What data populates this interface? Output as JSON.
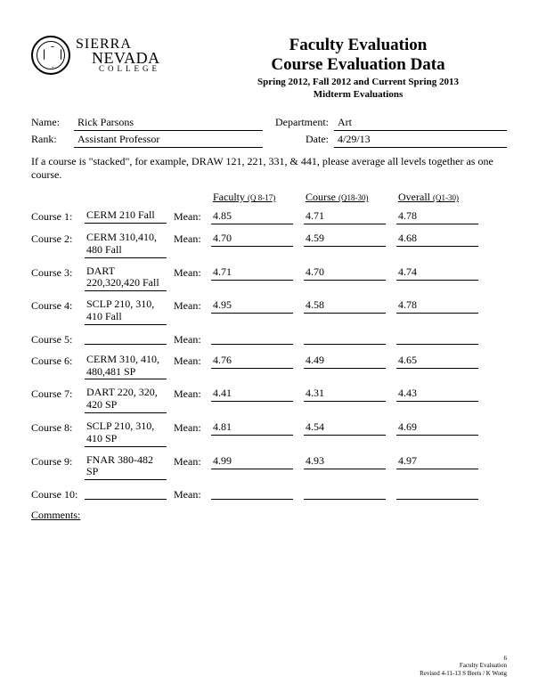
{
  "logo": {
    "line1": "SIERRA",
    "line2": "NEVADA",
    "line3": "COLLEGE"
  },
  "title": {
    "line1": "Faculty Evaluation",
    "line2": "Course Evaluation Data",
    "sub1": "Spring 2012, Fall 2012 and Current Spring 2013",
    "sub2": "Midterm Evaluations"
  },
  "info": {
    "name_label": "Name:",
    "name": "Rick Parsons",
    "dept_label": "Department:",
    "dept": "Art",
    "rank_label": "Rank:",
    "rank": "Assistant Professor",
    "date_label": "Date:",
    "date": "4/29/13"
  },
  "note": "If a course is \"stacked\", for example, DRAW 121, 221, 331, & 441, please average all levels together as one course.",
  "columns": {
    "faculty": "Faculty",
    "faculty_q": "(Q 8-17)",
    "course": "Course",
    "course_q": "(Q18-30)",
    "overall": "Overall",
    "overall_q": "(Q1-30)"
  },
  "mean_label": "Mean:",
  "rows": [
    {
      "label": "Course 1:",
      "name": "CERM 210 Fall",
      "faculty": "4.85",
      "course": "4.71",
      "overall": "4.78"
    },
    {
      "label": "Course 2:",
      "name": "CERM 310,410, 480  Fall",
      "faculty": "4.70",
      "course": "4.59",
      "overall": "4.68"
    },
    {
      "label": "Course 3:",
      "name": "DART 220,320,420 Fall",
      "faculty": "4.71",
      "course": "4.70",
      "overall": "4.74"
    },
    {
      "label": "Course 4:",
      "name": "SCLP 210, 310, 410 Fall",
      "faculty": "4.95",
      "course": "4.58",
      "overall": "4.78"
    },
    {
      "label": "Course 5:",
      "name": "",
      "faculty": "",
      "course": "",
      "overall": ""
    },
    {
      "label": "Course 6:",
      "name": "CERM 310, 410, 480,481 SP",
      "faculty": "4.76",
      "course": "4.49",
      "overall": "4.65"
    },
    {
      "label": "Course 7:",
      "name": "DART 220, 320, 420 SP",
      "faculty": "4.41",
      "course": "4.31",
      "overall": "4.43"
    },
    {
      "label": "Course 8:",
      "name": "SCLP 210, 310, 410 SP",
      "faculty": "4.81",
      "course": "4.54",
      "overall": "4.69"
    },
    {
      "label": "Course 9:",
      "name": "FNAR 380-482 SP",
      "faculty": "4.99",
      "course": "4.93",
      "overall": "4.97"
    },
    {
      "label": "Course 10:",
      "name": "",
      "faculty": "",
      "course": "",
      "overall": ""
    }
  ],
  "comments_label": "Comments:",
  "footer": {
    "page": "6",
    "line1": "Faculty Evaluation",
    "line2": "Revised 4-11-13 S Beets / K Wong"
  }
}
